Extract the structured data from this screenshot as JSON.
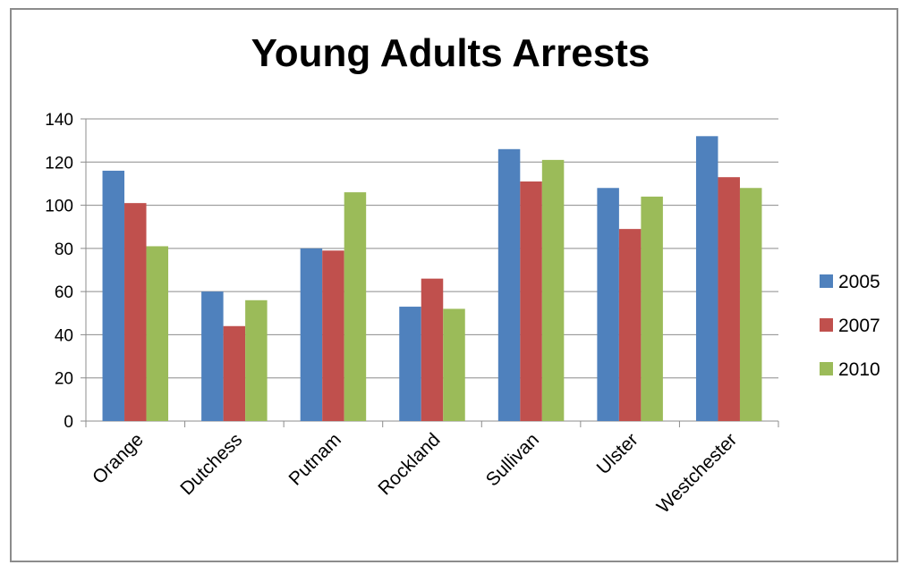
{
  "chart_data": {
    "type": "bar",
    "title": "Young Adults Arrests",
    "xlabel": "",
    "ylabel": "",
    "categories": [
      "Orange",
      "Dutchess",
      "Putnam",
      "Rockland",
      "Sullivan",
      "Ulster",
      "Westchester"
    ],
    "series": [
      {
        "name": "2005",
        "color": "#4f81bd",
        "values": [
          116,
          60,
          80,
          53,
          126,
          108,
          132
        ]
      },
      {
        "name": "2007",
        "color": "#c0504d",
        "values": [
          101,
          44,
          79,
          66,
          111,
          89,
          113
        ]
      },
      {
        "name": "2010",
        "color": "#9bbb59",
        "values": [
          81,
          56,
          106,
          52,
          121,
          104,
          108
        ]
      }
    ],
    "ylim": [
      0,
      140
    ],
    "yticks": [
      0,
      20,
      40,
      60,
      80,
      100,
      120,
      140
    ],
    "grid": true,
    "legend_position": "right"
  }
}
